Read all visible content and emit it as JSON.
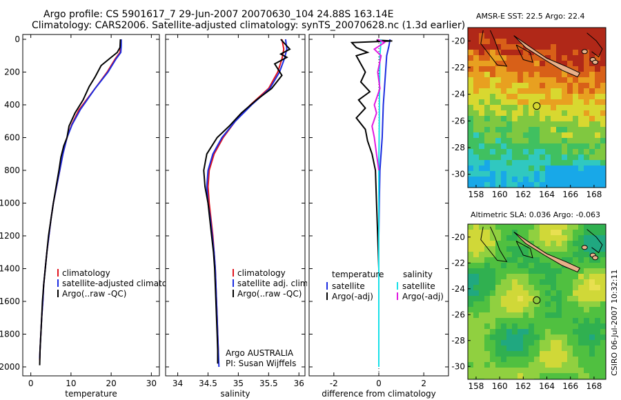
{
  "header": {
    "title_line1": "Argo profile: CS 5901617_7 29-Jun-2007 20070630_104 24.88S 163.14E",
    "title_line2": "Climatology: CARS2006. Satellite-adjusted climatology: synTS_20070628.nc (1.3d earlier)"
  },
  "side_label": "CSIRO 06-Jul-2007 10:32:11",
  "colors": {
    "red": "#e0141e",
    "blue": "#1a2be0",
    "black": "#000000",
    "cyan": "#18e0e8",
    "magenta": "#e018e0",
    "land": "#e8b08a"
  },
  "chart_data": [
    {
      "id": "temperature",
      "type": "line",
      "xlabel": "temperature",
      "ylabel": "",
      "xlim": [
        -2,
        32
      ],
      "ylim": [
        2060,
        0
      ],
      "xticks": [
        0,
        10,
        20,
        30
      ],
      "yticks": [
        0,
        200,
        400,
        600,
        800,
        1000,
        1200,
        1400,
        1600,
        1800,
        2000
      ],
      "legend": [
        "climatology",
        "satellite-adjusted climatology",
        "Argo(..raw -QC)"
      ],
      "series": [
        {
          "name": "climatology",
          "color": "red",
          "points": [
            [
              22.3,
              0
            ],
            [
              22.3,
              40
            ],
            [
              22.2,
              80
            ],
            [
              21,
              120
            ],
            [
              19,
              200
            ],
            [
              16,
              300
            ],
            [
              12,
              430
            ],
            [
              10.2,
              520
            ],
            [
              9,
              600
            ],
            [
              8,
              700
            ],
            [
              7.2,
              800
            ],
            [
              6.4,
              900
            ],
            [
              5.6,
              1000
            ],
            [
              5,
              1100
            ],
            [
              4.5,
              1200
            ],
            [
              4,
              1300
            ],
            [
              3.6,
              1400
            ],
            [
              3.2,
              1500
            ],
            [
              3,
              1600
            ],
            [
              2.7,
              1700
            ],
            [
              2.5,
              1800
            ],
            [
              2.3,
              1900
            ],
            [
              2.2,
              1960
            ]
          ]
        },
        {
          "name": "satellite-adjusted climatology",
          "color": "blue",
          "points": [
            [
              22.5,
              0
            ],
            [
              22.5,
              40
            ],
            [
              22.4,
              80
            ],
            [
              21.2,
              120
            ],
            [
              19.2,
              200
            ],
            [
              16,
              300
            ],
            [
              12.3,
              430
            ],
            [
              10.3,
              520
            ],
            [
              9,
              600
            ],
            [
              8,
              700
            ],
            [
              7.2,
              800
            ],
            [
              6.4,
              900
            ],
            [
              5.6,
              1000
            ],
            [
              5,
              1100
            ],
            [
              4.5,
              1200
            ],
            [
              4,
              1300
            ],
            [
              3.6,
              1400
            ],
            [
              3.2,
              1500
            ],
            [
              3,
              1600
            ],
            [
              2.7,
              1700
            ],
            [
              2.5,
              1800
            ],
            [
              2.3,
              1900
            ],
            [
              2.2,
              1950
            ]
          ]
        },
        {
          "name": "Argo(..raw -QC)",
          "color": "black",
          "points": [
            [
              22.3,
              0
            ],
            [
              22.2,
              50
            ],
            [
              21.5,
              80
            ],
            [
              20,
              110
            ],
            [
              17.5,
              160
            ],
            [
              16,
              230
            ],
            [
              14.5,
              290
            ],
            [
              13,
              370
            ],
            [
              11,
              450
            ],
            [
              9.5,
              530
            ],
            [
              9,
              600
            ],
            [
              8.2,
              650
            ],
            [
              7.5,
              720
            ],
            [
              7,
              800
            ],
            [
              6.3,
              900
            ],
            [
              5.6,
              1000
            ],
            [
              5,
              1100
            ],
            [
              4.4,
              1200
            ],
            [
              4,
              1300
            ],
            [
              3.6,
              1400
            ],
            [
              3.2,
              1500
            ],
            [
              2.9,
              1600
            ],
            [
              2.7,
              1700
            ],
            [
              2.5,
              1800
            ],
            [
              2.3,
              1900
            ],
            [
              2.2,
              1990
            ]
          ]
        }
      ]
    },
    {
      "id": "salinity",
      "type": "line",
      "xlabel": "salinity",
      "ylabel": "",
      "xlim": [
        33.8,
        36.1
      ],
      "ylim": [
        2060,
        0
      ],
      "xticks": [
        34,
        34.5,
        35,
        35.5,
        36
      ],
      "yticks": [
        0,
        200,
        400,
        600,
        800,
        1000,
        1200,
        1400,
        1600,
        1800,
        2000
      ],
      "legend": [
        "climatology",
        "satellite adj. clim.",
        "Argo(..raw -QC)"
      ],
      "annotation": [
        "Argo AUSTRALIA",
        "PI: Susan Wijffels"
      ],
      "series": [
        {
          "name": "climatology",
          "color": "red",
          "points": [
            [
              35.72,
              0
            ],
            [
              35.75,
              60
            ],
            [
              35.72,
              120
            ],
            [
              35.65,
              200
            ],
            [
              35.5,
              300
            ],
            [
              35.2,
              400
            ],
            [
              34.95,
              500
            ],
            [
              34.75,
              600
            ],
            [
              34.6,
              700
            ],
            [
              34.52,
              800
            ],
            [
              34.5,
              900
            ],
            [
              34.52,
              1000
            ],
            [
              34.55,
              1100
            ],
            [
              34.58,
              1200
            ],
            [
              34.6,
              1300
            ],
            [
              34.62,
              1400
            ],
            [
              34.63,
              1500
            ],
            [
              34.64,
              1600
            ],
            [
              34.65,
              1700
            ],
            [
              34.66,
              1800
            ],
            [
              34.67,
              1900
            ],
            [
              34.67,
              1960
            ]
          ]
        },
        {
          "name": "satellite adj. clim.",
          "color": "blue",
          "points": [
            [
              35.78,
              0
            ],
            [
              35.8,
              60
            ],
            [
              35.76,
              120
            ],
            [
              35.68,
              200
            ],
            [
              35.52,
              300
            ],
            [
              35.22,
              400
            ],
            [
              34.95,
              500
            ],
            [
              34.73,
              600
            ],
            [
              34.58,
              700
            ],
            [
              34.5,
              800
            ],
            [
              34.48,
              900
            ],
            [
              34.5,
              1000
            ],
            [
              34.54,
              1100
            ],
            [
              34.57,
              1200
            ],
            [
              34.6,
              1300
            ],
            [
              34.62,
              1400
            ],
            [
              34.63,
              1500
            ],
            [
              34.64,
              1600
            ],
            [
              34.65,
              1700
            ],
            [
              34.66,
              1800
            ],
            [
              34.67,
              1900
            ],
            [
              34.68,
              2000
            ]
          ]
        },
        {
          "name": "Argo(..raw -QC)",
          "color": "black",
          "points": [
            [
              35.7,
              0
            ],
            [
              35.85,
              60
            ],
            [
              35.7,
              90
            ],
            [
              35.8,
              110
            ],
            [
              35.6,
              150
            ],
            [
              35.72,
              220
            ],
            [
              35.55,
              300
            ],
            [
              35.3,
              370
            ],
            [
              35.05,
              450
            ],
            [
              34.85,
              530
            ],
            [
              34.65,
              600
            ],
            [
              34.48,
              700
            ],
            [
              34.43,
              800
            ],
            [
              34.45,
              900
            ],
            [
              34.5,
              1000
            ],
            [
              34.53,
              1100
            ],
            [
              34.56,
              1200
            ],
            [
              34.59,
              1300
            ],
            [
              34.61,
              1400
            ],
            [
              34.62,
              1500
            ],
            [
              34.63,
              1600
            ],
            [
              34.64,
              1700
            ],
            [
              34.65,
              1800
            ],
            [
              34.66,
              1900
            ],
            [
              34.66,
              1980
            ]
          ]
        }
      ]
    },
    {
      "id": "difference",
      "type": "line",
      "xlabel": "difference from climatology",
      "ylabel": "",
      "xlim": [
        -3.1,
        3.1
      ],
      "ylim": [
        2060,
        0
      ],
      "xticks": [
        -2,
        0,
        2
      ],
      "yticks": [
        0,
        200,
        400,
        600,
        800,
        1000,
        1200,
        1400,
        1600,
        1800,
        2000
      ],
      "legend_titles": [
        "temperature",
        "salinity"
      ],
      "legend": [
        "satellite",
        "Argo(-adj)",
        "satellite",
        "Argo(-adj)"
      ],
      "series": [
        {
          "name": "satellite",
          "color": "blue",
          "points": [
            [
              0.5,
              0
            ],
            [
              0.45,
              40
            ],
            [
              0.35,
              100
            ],
            [
              0.3,
              200
            ],
            [
              0.2,
              400
            ],
            [
              0.15,
              600
            ],
            [
              0.05,
              800
            ],
            [
              0.02,
              1000
            ],
            [
              0,
              1200
            ],
            [
              0,
              1500
            ],
            [
              0,
              1800
            ],
            [
              0,
              2000
            ]
          ]
        },
        {
          "name": "Argo(-adj)",
          "color": "black",
          "points": [
            [
              -0.1,
              5
            ],
            [
              0.6,
              10
            ],
            [
              -1.2,
              20
            ],
            [
              -1.0,
              50
            ],
            [
              -0.5,
              80
            ],
            [
              -1.0,
              100
            ],
            [
              -0.8,
              150
            ],
            [
              -0.6,
              200
            ],
            [
              -0.8,
              260
            ],
            [
              -0.4,
              320
            ],
            [
              -0.9,
              370
            ],
            [
              -0.6,
              420
            ],
            [
              -1.0,
              480
            ],
            [
              -0.6,
              550
            ],
            [
              -0.5,
              620
            ],
            [
              -0.3,
              700
            ],
            [
              -0.15,
              800
            ],
            [
              -0.1,
              1000
            ],
            [
              -0.05,
              1200
            ],
            [
              0,
              1400
            ],
            [
              0,
              1700
            ],
            [
              0,
              2000
            ]
          ]
        },
        {
          "name": "satellite",
          "color": "cyan",
          "points": [
            [
              0.1,
              0
            ],
            [
              0.05,
              100
            ],
            [
              0.03,
              300
            ],
            [
              0.02,
              500
            ],
            [
              0,
              800
            ],
            [
              0,
              1200
            ],
            [
              0,
              1600
            ],
            [
              0,
              2000
            ]
          ]
        },
        {
          "name": "Argo(-adj)",
          "color": "magenta",
          "points": [
            [
              -0.05,
              0
            ],
            [
              0.25,
              20
            ],
            [
              -0.2,
              60
            ],
            [
              0.1,
              100
            ],
            [
              -0.05,
              200
            ],
            [
              0.05,
              300
            ],
            [
              -0.2,
              400
            ],
            [
              -0.1,
              450
            ],
            [
              -0.3,
              530
            ],
            [
              -0.2,
              600
            ],
            [
              -0.1,
              700
            ],
            [
              0,
              800
            ]
          ]
        }
      ]
    }
  ],
  "maps": [
    {
      "id": "sst",
      "title": "AMSR-E SST: 22.5 Argo: 22.4",
      "xticks": [
        158,
        160,
        162,
        164,
        166,
        168
      ],
      "yticks": [
        -20,
        -22,
        -24,
        -26,
        -28,
        -30
      ],
      "xlim": [
        157.3,
        169
      ],
      "ylim": [
        -31,
        -19
      ],
      "float_lon": 163.14,
      "float_lat": -24.88,
      "palette": [
        "#18a8e8",
        "#30c8c0",
        "#40c060",
        "#80c840",
        "#d8d830",
        "#e8a020",
        "#d86018",
        "#b02818"
      ]
    },
    {
      "id": "sla",
      "title": "Altimetric SLA: 0.036 Argo: -0.063",
      "xticks": [
        158,
        160,
        162,
        164,
        166,
        168
      ],
      "yticks": [
        -20,
        -22,
        -24,
        -26,
        -28,
        -30
      ],
      "xlim": [
        157.3,
        169
      ],
      "ylim": [
        -31,
        -19
      ],
      "float_lon": 163.14,
      "float_lat": -24.88,
      "palette": [
        "#20a880",
        "#30b050",
        "#50c040",
        "#90d040",
        "#d0d838",
        "#e8e050"
      ]
    }
  ]
}
